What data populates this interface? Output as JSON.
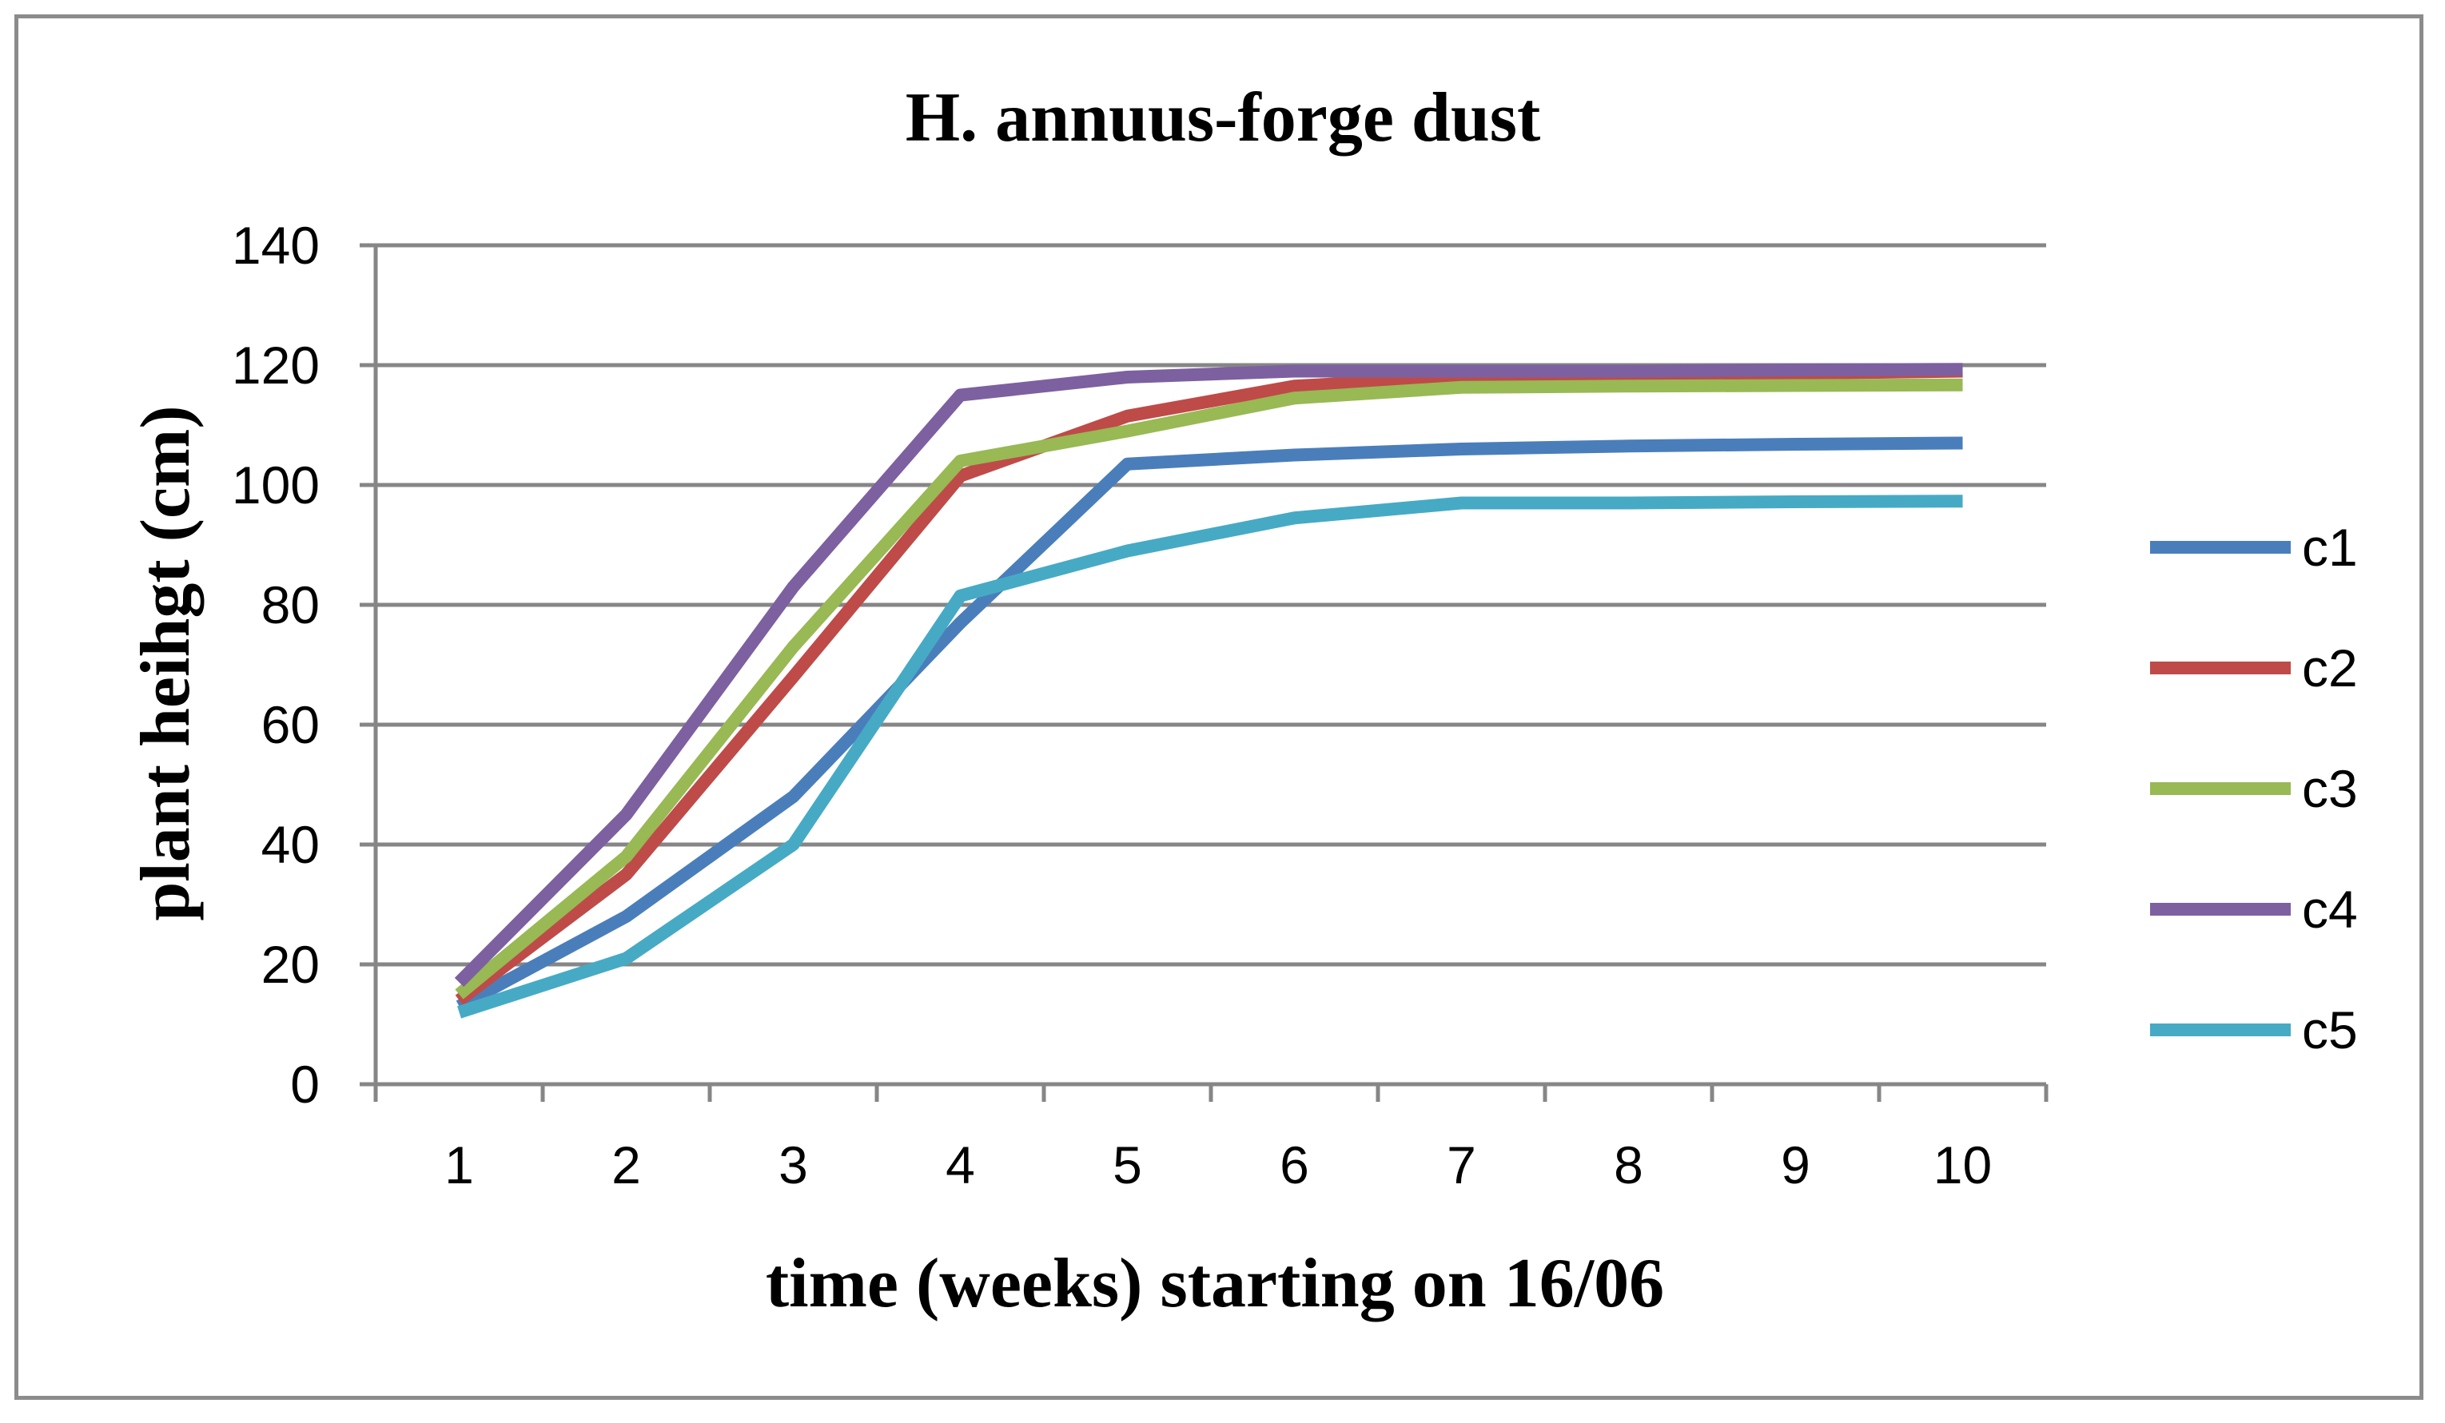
{
  "chart_data": {
    "type": "line",
    "title": "H. annuus-forge dust",
    "xlabel": "time (weeks) starting on 16/06",
    "ylabel": "plant heihgt (cm)",
    "categories": [
      "1",
      "2",
      "3",
      "4",
      "5",
      "6",
      "7",
      "8",
      "9",
      "10"
    ],
    "ylim": [
      0,
      140
    ],
    "yticks": [
      "0",
      "20",
      "40",
      "60",
      "80",
      "100",
      "120",
      "140"
    ],
    "grid": true,
    "legend_position": "right",
    "series": [
      {
        "name": "c1",
        "color": "#4A7EBB",
        "values": [
          13,
          28,
          48,
          77,
          103.5,
          105,
          106,
          106.5,
          106.8,
          107
        ]
      },
      {
        "name": "c2",
        "color": "#BE4B48",
        "values": [
          14,
          35,
          68,
          101.5,
          111.5,
          116.5,
          118,
          118.3,
          118.6,
          119
        ]
      },
      {
        "name": "c3",
        "color": "#98B954",
        "values": [
          15,
          38,
          73,
          104,
          109,
          114.5,
          116.3,
          116.5,
          116.6,
          116.7
        ]
      },
      {
        "name": "c4",
        "color": "#7D60A0",
        "values": [
          17,
          45,
          83,
          115,
          118,
          119,
          119,
          119,
          119.2,
          119.3
        ]
      },
      {
        "name": "c5",
        "color": "#46AAC5",
        "values": [
          12,
          21,
          40,
          81.5,
          89,
          94.5,
          97,
          97,
          97.2,
          97.3
        ]
      }
    ]
  }
}
